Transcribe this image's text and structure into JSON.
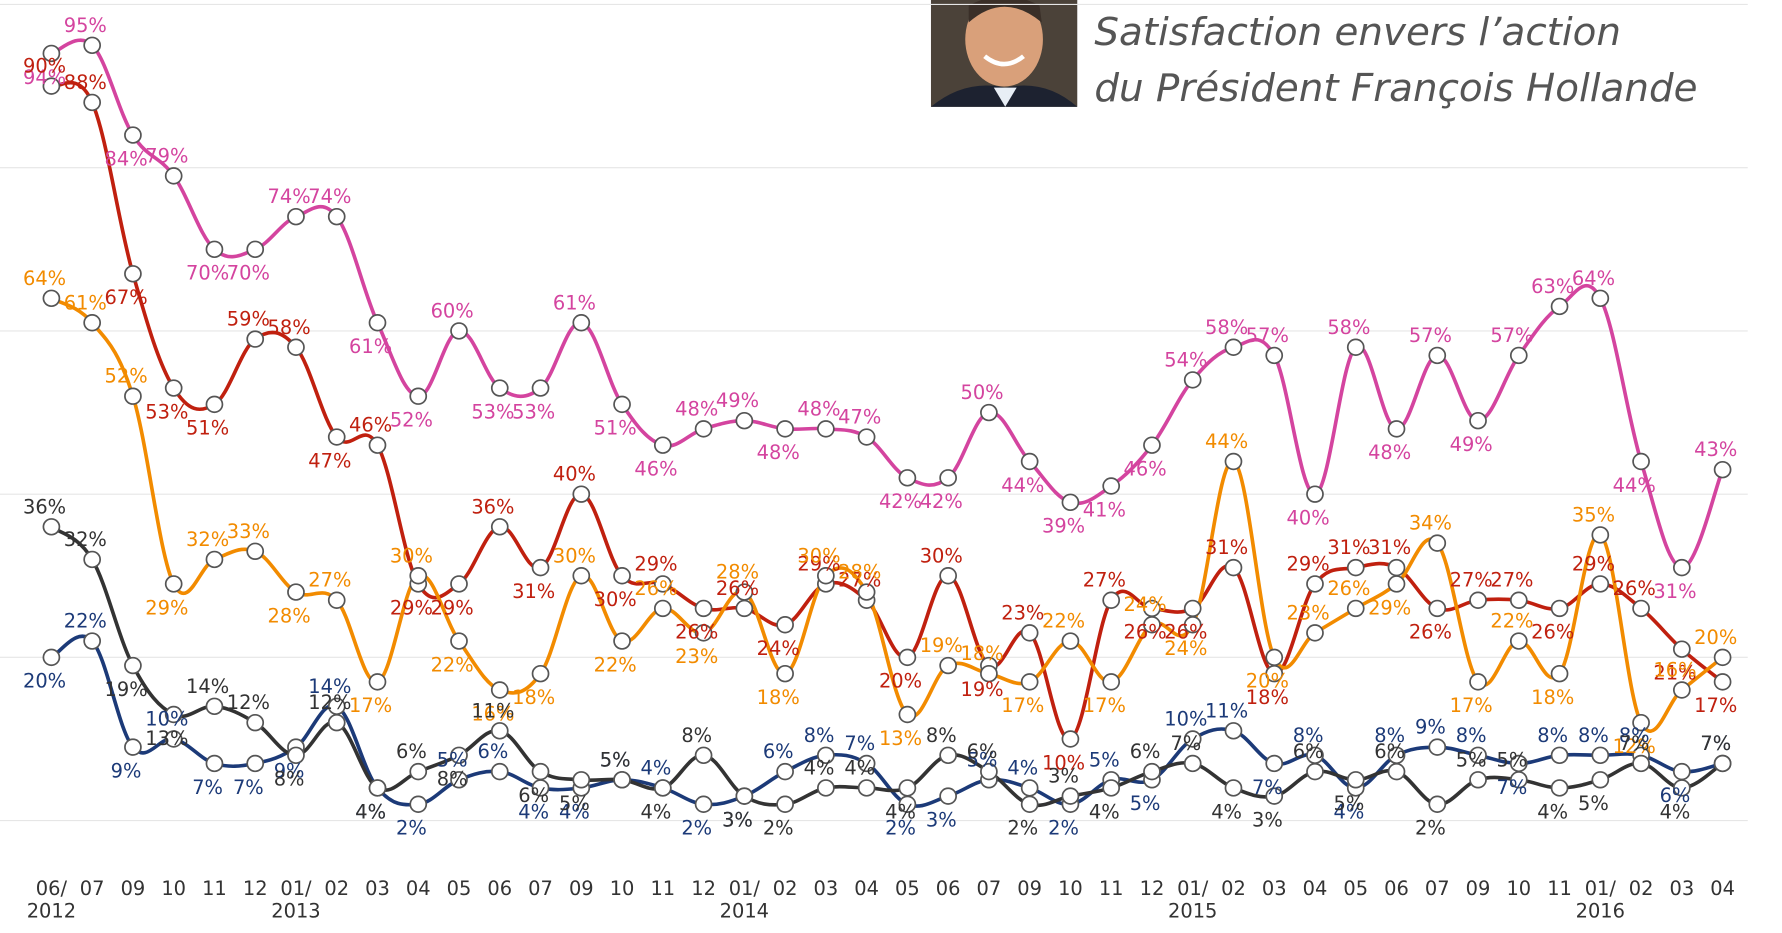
{
  "chart_data": {
    "type": "line",
    "title": "Satisfaction envers l’action\ndu Président François Hollande",
    "categories": [
      "06/\n2012",
      "07",
      "09",
      "10",
      "11",
      "12",
      "01/\n2013",
      "02",
      "03",
      "04",
      "05",
      "06",
      "07",
      "09",
      "10",
      "11",
      "12",
      "01/\n2014",
      "02",
      "03",
      "04",
      "05",
      "06",
      "07",
      "09",
      "10",
      "11",
      "12",
      "01/\n2015",
      "02",
      "03",
      "04",
      "05",
      "06",
      "07",
      "09",
      "10",
      "11",
      "01/\n2016",
      "02",
      "03",
      "04"
    ],
    "ylim": [
      0,
      100
    ],
    "yticks": [
      0,
      20,
      40,
      60,
      80,
      100
    ],
    "grid": true,
    "series": [
      {
        "color": "#d4449f",
        "values": [
          94,
          95,
          84,
          79,
          70,
          70,
          74,
          74,
          61,
          52,
          60,
          53,
          53,
          61,
          51,
          46,
          48,
          49,
          48,
          48,
          47,
          42,
          42,
          50,
          44,
          39,
          41,
          46,
          54,
          58,
          57,
          40,
          58,
          48,
          57,
          49,
          57,
          63,
          64,
          44,
          31,
          43
        ],
        "value_labels": [
          "94%",
          "95%",
          "84%",
          "79%",
          "70%",
          "70%",
          "74%",
          "74%",
          "61%",
          "52%",
          "60%",
          "53%",
          "53%",
          "61%",
          "51%",
          "46%",
          "48%",
          "49%",
          "48%",
          "48%",
          "47%",
          "42%",
          "42%",
          "50%",
          "44%",
          "39%",
          "41%",
          "46%",
          "54%",
          "58%",
          "57%",
          "40%",
          "58%",
          "48%",
          "57%",
          "49%",
          "57%",
          "63%",
          "64%",
          "44%",
          "31%",
          "43%"
        ]
      },
      {
        "color": "#c0200f",
        "values": [
          90,
          88,
          67,
          53,
          51,
          59,
          58,
          47,
          46,
          29,
          29,
          36,
          31,
          40,
          30,
          29,
          26,
          26,
          24,
          29,
          27,
          20,
          30,
          19,
          23,
          10,
          27,
          26,
          26,
          31,
          18,
          29,
          31,
          31,
          26,
          27,
          27,
          26,
          29,
          26,
          21,
          17
        ],
        "value_labels": [
          "90%",
          "88%",
          "67%",
          "53%",
          "51%",
          "59%",
          "58%",
          "47%",
          "46%",
          "29%",
          "29%",
          "36%",
          "31%",
          "40%",
          "30%",
          "29%",
          "26%",
          "26%",
          "24%",
          "29%",
          "27%",
          "20%",
          "30%",
          "19%",
          "23%",
          "10%",
          "27%",
          "26%",
          "26%",
          "31%",
          "18%",
          "29%",
          "31%",
          "31%",
          "26%",
          "27%",
          "27%",
          "26%",
          "29%",
          "26%",
          "21%",
          "17%"
        ]
      },
      {
        "color": "#f28b00",
        "values": [
          64,
          61,
          52,
          29,
          32,
          33,
          28,
          27,
          17,
          30,
          22,
          16,
          18,
          30,
          22,
          26,
          23,
          28,
          18,
          30,
          28,
          13,
          19,
          18,
          17,
          22,
          17,
          24,
          24,
          44,
          20,
          23,
          26,
          29,
          34,
          17,
          22,
          18,
          35,
          12,
          16,
          20
        ],
        "value_labels": [
          "64%",
          "61%",
          "52%",
          "29%",
          "32%",
          "33%",
          "28%",
          "27%",
          "17%",
          "30%",
          "22%",
          "16%",
          "18%",
          "30%",
          "22%",
          "26%",
          "23%",
          "28%",
          "18%",
          "30%",
          "28%",
          "13%",
          "19%",
          "18%",
          "17%",
          "22%",
          "17%",
          "24%",
          "24%",
          "44%",
          "20%",
          "23%",
          "26%",
          "29%",
          "34%",
          "17%",
          "22%",
          "18%",
          "35%",
          "12%",
          "16%",
          "20%"
        ]
      },
      {
        "color": "#1c3a78",
        "values": [
          20,
          22,
          9,
          10,
          7,
          7,
          9,
          14,
          4,
          2,
          5,
          6,
          4,
          4,
          5,
          4,
          2,
          3,
          6,
          8,
          7,
          2,
          3,
          5,
          4,
          2,
          5,
          5,
          10,
          11,
          7,
          8,
          4,
          8,
          9,
          8,
          7,
          8,
          8,
          8,
          6,
          7
        ],
        "value_labels": [
          "20%",
          "22%",
          "9%",
          "10%",
          "7%",
          "7%",
          "9%",
          "14%",
          "4%",
          "2%",
          "5%",
          "6%",
          "4%",
          "4%",
          "5%",
          "4%",
          "2%",
          "3%",
          "6%",
          "8%",
          "7%",
          "2%",
          "3%",
          "5%",
          "4%",
          "2%",
          "5%",
          "5%",
          "10%",
          "11%",
          "7%",
          "8%",
          "4%",
          "8%",
          "9%",
          "8%",
          "7%",
          "8%",
          "8%",
          "8%",
          "6%",
          "7%"
        ]
      },
      {
        "color": "#333333",
        "values": [
          36,
          32,
          19,
          13,
          14,
          12,
          8,
          12,
          4,
          6,
          8,
          11,
          6,
          5,
          5,
          4,
          8,
          3,
          2,
          4,
          4,
          4,
          8,
          6,
          2,
          3,
          4,
          6,
          7,
          4,
          3,
          6,
          5,
          6,
          2,
          5,
          5,
          4,
          5,
          7,
          4,
          7
        ],
        "value_labels": [
          "36%",
          "32%",
          "19%",
          "13%",
          "14%",
          "12%",
          "8%",
          "12%",
          "4%",
          "6%",
          "8%",
          "11%",
          "6%",
          "5%",
          "5%",
          "4%",
          "8%",
          "3%",
          "2%",
          "4%",
          "4%",
          "4%",
          "8%",
          "6%",
          "2%",
          "3%",
          "4%",
          "6%",
          "7%",
          "4%",
          "3%",
          "6%",
          "5%",
          "6%",
          "2%",
          "5%",
          "5%",
          "4%",
          "5%",
          "7%",
          "4%",
          "7%"
        ]
      }
    ]
  }
}
